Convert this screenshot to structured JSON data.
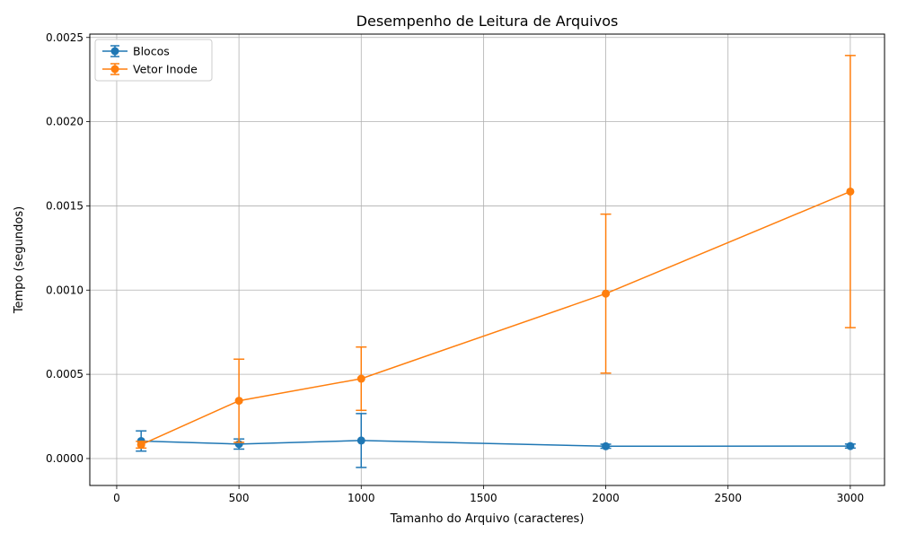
{
  "chart_data": {
    "type": "line",
    "title": "Desempenho de Leitura de Arquivos",
    "xlabel": "Tamanho do Arquivo (caracteres)",
    "ylabel": "Tempo (segundos)",
    "xlim": [
      -110,
      3140
    ],
    "ylim": [
      -0.00016,
      0.00252
    ],
    "x_ticks": [
      0,
      500,
      1000,
      1500,
      2000,
      2500,
      3000
    ],
    "x_tick_labels": [
      "0",
      "500",
      "1000",
      "1500",
      "2000",
      "2500",
      "3000"
    ],
    "y_ticks": [
      0,
      0.0005,
      0.001,
      0.0015,
      0.002,
      0.0025
    ],
    "y_tick_labels": [
      "0.0000",
      "0.0005",
      "0.0010",
      "0.0015",
      "0.0020",
      "0.0025"
    ],
    "grid": true,
    "legend_position": "top-left",
    "x": [
      100,
      500,
      1000,
      2000,
      3000
    ],
    "series": [
      {
        "name": "Blocos",
        "color": "#1f77b4",
        "values": [
          0.000104,
          8.6e-05,
          0.000107,
          7.3e-05,
          7.4e-05
        ],
        "error": [
          6e-05,
          3e-05,
          0.00016,
          1.2e-05,
          1.2e-05
        ]
      },
      {
        "name": "Vetor Inode",
        "color": "#ff7f0e",
        "values": [
          8.2e-05,
          0.000343,
          0.000474,
          0.000979,
          0.001585
        ],
        "error": [
          2e-05,
          0.000247,
          0.000188,
          0.000472,
          0.000808
        ]
      }
    ]
  }
}
